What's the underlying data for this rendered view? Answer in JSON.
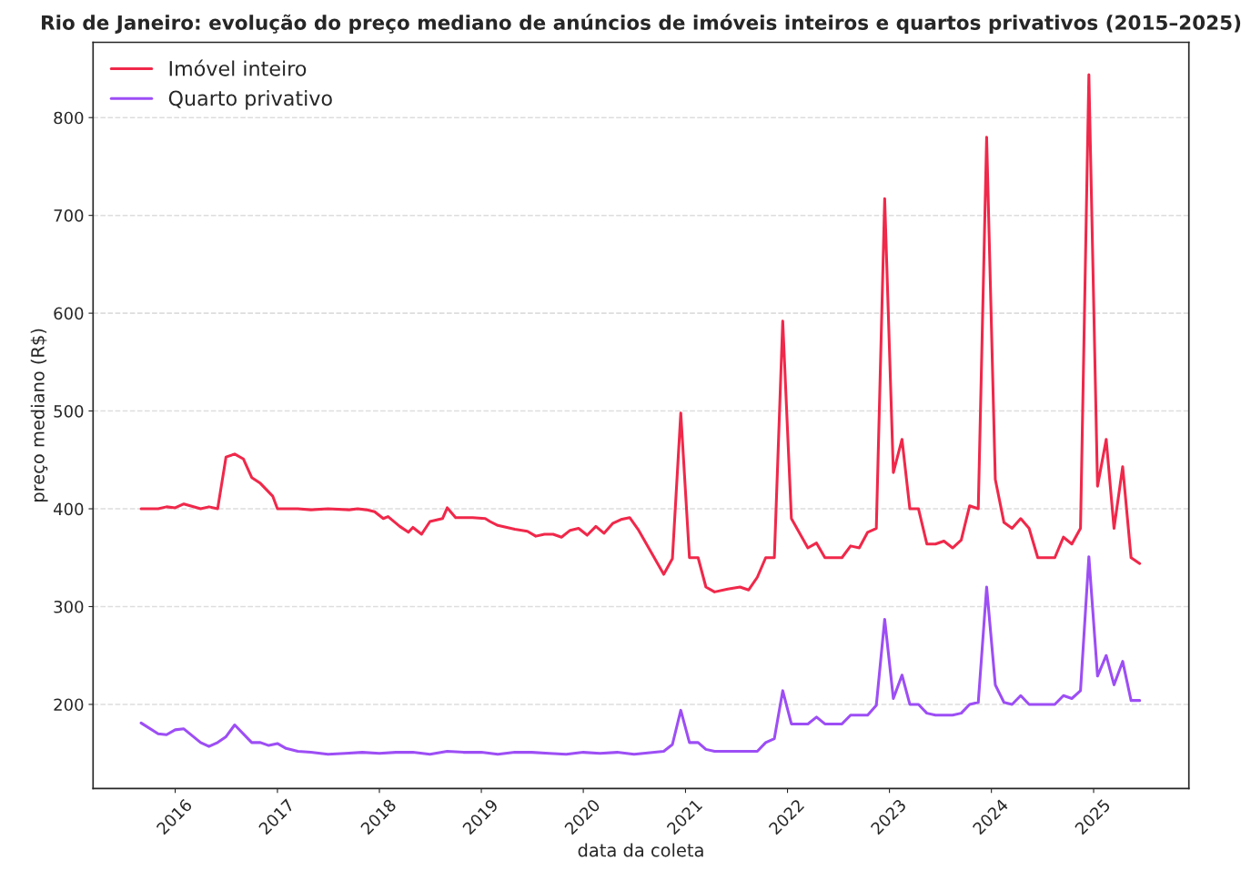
{
  "chart_data": {
    "type": "line",
    "title": "Rio de Janeiro: evolução do preço mediano de anúncios de imóveis inteiros e quartos privativos (2015–2025)",
    "xlabel": "data da coleta",
    "ylabel": "preço mediano (R$)",
    "xlim": [
      "2015-03-13",
      "2025-12-08"
    ],
    "ylim": [
      114,
      877
    ],
    "xticks": [
      {
        "value": "2016-01-01",
        "label": "2016"
      },
      {
        "value": "2017-01-01",
        "label": "2017"
      },
      {
        "value": "2018-01-01",
        "label": "2018"
      },
      {
        "value": "2019-01-01",
        "label": "2019"
      },
      {
        "value": "2020-01-01",
        "label": "2020"
      },
      {
        "value": "2021-01-01",
        "label": "2021"
      },
      {
        "value": "2022-01-01",
        "label": "2022"
      },
      {
        "value": "2023-01-01",
        "label": "2023"
      },
      {
        "value": "2024-01-01",
        "label": "2024"
      },
      {
        "value": "2025-01-01",
        "label": "2025"
      }
    ],
    "yticks": [
      200,
      300,
      400,
      500,
      600,
      700,
      800
    ],
    "grid": "y",
    "legend": "top left",
    "line_style": "solid",
    "series": [
      {
        "name": "Imóvel inteiro",
        "color": "#f0284a",
        "x": [
          "2015-09-01",
          "2015-11-01",
          "2015-12-01",
          "2016-01-01",
          "2016-02-01",
          "2016-04-01",
          "2016-05-01",
          "2016-06-01",
          "2016-07-01",
          "2016-08-01",
          "2016-09-01",
          "2016-10-01",
          "2016-11-01",
          "2016-12-15",
          "2017-01-01",
          "2017-03-15",
          "2017-05-01",
          "2017-07-01",
          "2017-09-15",
          "2017-10-15",
          "2017-11-15",
          "2017-12-15",
          "2018-01-15",
          "2018-02-01",
          "2018-03-15",
          "2018-04-15",
          "2018-05-01",
          "2018-06-01",
          "2018-07-01",
          "2018-08-15",
          "2018-09-01",
          "2018-10-01",
          "2018-12-01",
          "2019-01-15",
          "2019-02-01",
          "2019-03-01",
          "2019-05-01",
          "2019-06-15",
          "2019-07-15",
          "2019-08-15",
          "2019-09-15",
          "2019-10-15",
          "2019-11-15",
          "2019-12-15",
          "2020-01-15",
          "2020-02-15",
          "2020-03-15",
          "2020-04-15",
          "2020-05-15",
          "2020-06-15",
          "2020-07-15",
          "2020-10-15",
          "2020-11-15",
          "2020-12-15",
          "2021-01-15",
          "2021-02-15",
          "2021-03-15",
          "2021-04-15",
          "2021-06-01",
          "2021-07-15",
          "2021-08-15",
          "2021-09-15",
          "2021-10-15",
          "2021-11-15",
          "2021-12-15",
          "2022-01-15",
          "2022-03-15",
          "2022-04-15",
          "2022-05-15",
          "2022-07-15",
          "2022-08-15",
          "2022-09-15",
          "2022-10-15",
          "2022-11-15",
          "2022-12-15",
          "2023-01-15",
          "2023-02-15",
          "2023-03-15",
          "2023-04-15",
          "2023-05-15",
          "2023-06-15",
          "2023-07-15",
          "2023-08-15",
          "2023-09-15",
          "2023-10-15",
          "2023-11-15",
          "2023-12-15",
          "2024-01-15",
          "2024-02-15",
          "2024-03-15",
          "2024-04-15",
          "2024-05-15",
          "2024-06-15",
          "2024-08-15",
          "2024-09-15",
          "2024-10-15",
          "2024-11-15",
          "2024-12-15",
          "2025-01-15",
          "2025-02-15",
          "2025-03-15",
          "2025-04-15",
          "2025-05-15",
          "2025-06-15"
        ],
        "values": [
          400,
          400,
          402,
          401,
          405,
          400,
          402,
          400,
          453,
          456,
          451,
          432,
          426,
          413,
          400,
          400,
          399,
          400,
          399,
          400,
          399,
          397,
          390,
          392,
          382,
          376,
          381,
          374,
          387,
          390,
          401,
          391,
          391,
          390,
          387,
          383,
          379,
          377,
          372,
          374,
          374,
          371,
          378,
          380,
          373,
          382,
          375,
          385,
          389,
          391,
          379,
          333,
          349,
          498,
          350,
          350,
          320,
          315,
          318,
          320,
          317,
          330,
          350,
          350,
          592,
          390,
          360,
          365,
          350,
          350,
          362,
          360,
          376,
          380,
          717,
          437,
          471,
          400,
          400,
          364,
          364,
          367,
          360,
          368,
          403,
          400,
          780,
          430,
          386,
          380,
          390,
          380,
          350,
          350,
          371,
          364,
          380,
          844,
          423,
          471,
          380,
          443,
          350,
          344
        ]
      },
      {
        "name": "Quarto privativo",
        "color": "#9d4ef5",
        "x": [
          "2015-09-01",
          "2015-11-01",
          "2015-12-01",
          "2016-01-01",
          "2016-02-01",
          "2016-04-01",
          "2016-05-01",
          "2016-06-01",
          "2016-07-01",
          "2016-08-01",
          "2016-10-01",
          "2016-11-01",
          "2016-12-01",
          "2017-01-01",
          "2017-02-01",
          "2017-03-15",
          "2017-05-01",
          "2017-07-01",
          "2017-09-01",
          "2017-11-01",
          "2018-01-01",
          "2018-03-01",
          "2018-05-01",
          "2018-07-01",
          "2018-09-01",
          "2018-11-01",
          "2019-01-01",
          "2019-03-01",
          "2019-05-01",
          "2019-07-01",
          "2019-09-01",
          "2019-11-01",
          "2020-01-01",
          "2020-03-01",
          "2020-05-01",
          "2020-07-01",
          "2020-10-15",
          "2020-11-15",
          "2020-12-15",
          "2021-01-15",
          "2021-02-15",
          "2021-03-15",
          "2021-04-15",
          "2021-09-15",
          "2021-10-15",
          "2021-11-15",
          "2021-12-15",
          "2022-01-15",
          "2022-03-15",
          "2022-04-15",
          "2022-05-15",
          "2022-07-15",
          "2022-08-15",
          "2022-10-15",
          "2022-11-15",
          "2022-12-15",
          "2023-01-15",
          "2023-02-15",
          "2023-03-15",
          "2023-04-15",
          "2023-05-15",
          "2023-06-15",
          "2023-08-15",
          "2023-09-15",
          "2023-10-15",
          "2023-11-15",
          "2023-12-15",
          "2024-01-15",
          "2024-02-15",
          "2024-03-15",
          "2024-04-15",
          "2024-05-15",
          "2024-08-15",
          "2024-09-15",
          "2024-10-15",
          "2024-11-15",
          "2024-12-15",
          "2025-01-15",
          "2025-02-15",
          "2025-03-15",
          "2025-04-15",
          "2025-05-15",
          "2025-06-15"
        ],
        "values": [
          181,
          170,
          169,
          174,
          175,
          161,
          157,
          161,
          167,
          179,
          161,
          161,
          158,
          160,
          155,
          152,
          151,
          149,
          150,
          151,
          150,
          151,
          151,
          149,
          152,
          151,
          151,
          149,
          151,
          151,
          150,
          149,
          151,
          150,
          151,
          149,
          152,
          159,
          194,
          161,
          161,
          154,
          152,
          152,
          161,
          165,
          214,
          180,
          180,
          187,
          180,
          180,
          189,
          189,
          199,
          287,
          206,
          230,
          200,
          200,
          191,
          189,
          189,
          191,
          200,
          202,
          320,
          220,
          202,
          200,
          209,
          200,
          200,
          209,
          206,
          214,
          351,
          229,
          250,
          220,
          244,
          204,
          204
        ]
      }
    ]
  }
}
